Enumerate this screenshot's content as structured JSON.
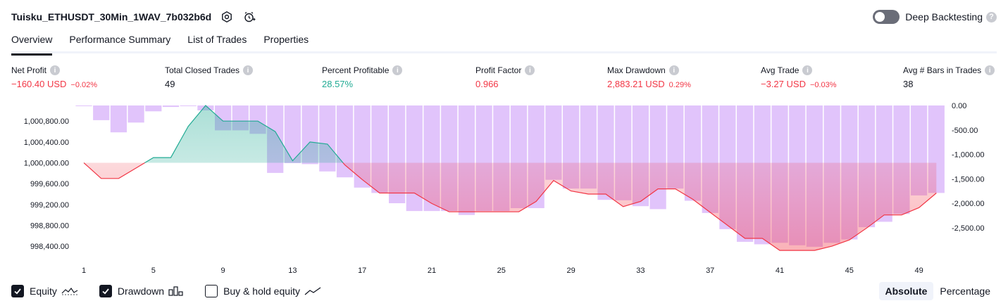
{
  "header": {
    "strategy_title": "Tuisku_ETHUSDT_30Min_1WAV_7b032b6d",
    "deep_backtesting_label": "Deep Backtesting"
  },
  "tabs": [
    "Overview",
    "Performance Summary",
    "List of Trades",
    "Properties"
  ],
  "metrics": {
    "net_profit": {
      "label": "Net Profit",
      "value": "−160.40 USD",
      "pct": "−0.02%"
    },
    "total_closed_trades": {
      "label": "Total Closed Trades",
      "value": "49"
    },
    "percent_profitable": {
      "label": "Percent Profitable",
      "value": "28.57%"
    },
    "profit_factor": {
      "label": "Profit Factor",
      "value": "0.966"
    },
    "max_drawdown": {
      "label": "Max Drawdown",
      "value": "2,883.21 USD",
      "pct": "0.29%"
    },
    "avg_trade": {
      "label": "Avg Trade",
      "value": "−3.27 USD",
      "pct": "−0.03%"
    },
    "avg_bars": {
      "label": "Avg # Bars in Trades",
      "value": "38"
    }
  },
  "chart_data": {
    "type": "line",
    "x": [
      1,
      2,
      3,
      4,
      5,
      6,
      7,
      8,
      9,
      10,
      11,
      12,
      13,
      14,
      15,
      16,
      17,
      18,
      19,
      20,
      21,
      22,
      23,
      24,
      25,
      26,
      27,
      28,
      29,
      30,
      31,
      32,
      33,
      34,
      35,
      36,
      37,
      38,
      39,
      40,
      41,
      42,
      43,
      44,
      45,
      46,
      47,
      48,
      49,
      50
    ],
    "xticks": [
      "1",
      "5",
      "9",
      "13",
      "17",
      "21",
      "25",
      "29",
      "33",
      "37",
      "41",
      "45",
      "49"
    ],
    "left_axis": {
      "ticks": [
        "1,000,800.00",
        "1,000,400.00",
        "1,000,000.00",
        "999,600.00",
        "999,200.00",
        "998,800.00",
        "998,400.00"
      ],
      "range": [
        998240,
        1001100
      ]
    },
    "right_axis": {
      "ticks": [
        "0.00",
        "-500.00",
        "-1,000.00",
        "-1,500.00",
        "-2,000.00",
        "-2,500.00"
      ],
      "range": [
        -3050,
        0
      ]
    },
    "series": [
      {
        "name": "Equity",
        "axis": "left",
        "values": [
          1000000,
          999700,
          999700,
          999900,
          1000100,
          1000100,
          1000700,
          1001100,
          1000800,
          1000800,
          1000800,
          1000600,
          1000040,
          1000400,
          1000360,
          999960,
          999680,
          999420,
          999420,
          999420,
          999220,
          999060,
          999060,
          999060,
          999060,
          999060,
          999260,
          999660,
          999460,
          999400,
          999400,
          999160,
          999260,
          999500,
          999500,
          999300,
          999050,
          998800,
          998550,
          998550,
          998320,
          998320,
          998320,
          998400,
          998520,
          998750,
          999000,
          999000,
          999140,
          999420
        ]
      },
      {
        "name": "Drawdown",
        "axis": "right",
        "values": [
          0,
          -300,
          -550,
          -350,
          -120,
          -30,
          0,
          -100,
          -510,
          -510,
          -580,
          -1380,
          -1180,
          -1200,
          -1350,
          -1470,
          -1680,
          -1790,
          -2000,
          -2160,
          -2160,
          -2160,
          -2240,
          -2160,
          -2160,
          -2100,
          -2100,
          -1520,
          -1700,
          -1700,
          -1930,
          -1940,
          -2060,
          -2120,
          -1700,
          -1950,
          -2200,
          -2530,
          -2790,
          -2840,
          -2810,
          -2860,
          -2890,
          -2810,
          -2740,
          -2490,
          -2380,
          -2220,
          -1840,
          -1790
        ]
      }
    ]
  },
  "legend": {
    "equity": {
      "label": "Equity",
      "checked": true
    },
    "drawdown": {
      "label": "Drawdown",
      "checked": true
    },
    "buy_hold": {
      "label": "Buy & hold equity",
      "checked": false
    }
  },
  "mode": {
    "absolute": "Absolute",
    "percentage": "Percentage",
    "selected": "absolute"
  },
  "colors": {
    "accent": "#131722",
    "negative": "#f23645",
    "positive": "#22ab94",
    "drawdown_bar": "#e1c4fb",
    "equity_pos": "#22ab94",
    "equity_neg": "#f23645"
  }
}
